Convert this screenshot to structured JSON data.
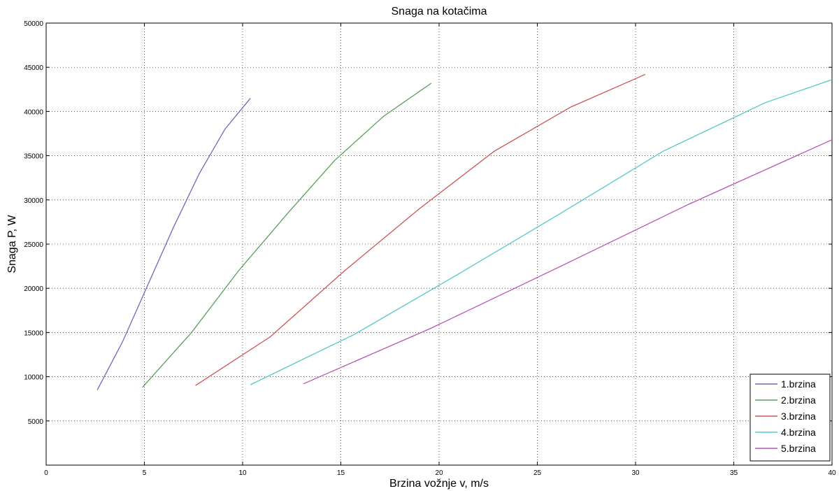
{
  "chart_data": {
    "type": "line",
    "title": "Snaga na kotačima",
    "xlabel": "Brzina vožnje v, m/s",
    "ylabel": "Snaga P, W",
    "xlim": [
      0,
      40
    ],
    "ylim": [
      0,
      50000
    ],
    "xticks": [
      0,
      5,
      10,
      15,
      20,
      25,
      30,
      35,
      40
    ],
    "yticks": [
      5000,
      10000,
      15000,
      20000,
      25000,
      30000,
      35000,
      40000,
      45000,
      50000
    ],
    "grid": true,
    "legend_position": "bottom-right",
    "series": [
      {
        "name": "1.brzina",
        "color": "#6a6ab8",
        "x": [
          2.6,
          3.9,
          5.2,
          6.5,
          7.8,
          9.1,
          10.4
        ],
        "y": [
          8500,
          14000,
          20500,
          27000,
          33000,
          38000,
          41500
        ]
      },
      {
        "name": "2.brzina",
        "color": "#5d9c5d",
        "x": [
          4.9,
          7.4,
          9.8,
          12.3,
          14.7,
          17.2,
          19.6
        ],
        "y": [
          8800,
          15000,
          22000,
          28500,
          34500,
          39500,
          43200
        ]
      },
      {
        "name": "3.brzina",
        "color": "#cc5555",
        "x": [
          7.6,
          11.4,
          15.2,
          19.0,
          22.8,
          26.7,
          30.5
        ],
        "y": [
          9000,
          14500,
          22000,
          29000,
          35500,
          40500,
          44200
        ]
      },
      {
        "name": "4.brzina",
        "color": "#55c8c8",
        "x": [
          10.4,
          15.7,
          20.9,
          26.2,
          31.4,
          36.6,
          40.0
        ],
        "y": [
          9100,
          14800,
          21500,
          28500,
          35500,
          41000,
          43600
        ]
      },
      {
        "name": "5.brzina",
        "color": "#b455b4",
        "x": [
          13.1,
          19.6,
          26.2,
          32.7,
          40.0
        ],
        "y": [
          9200,
          15500,
          22500,
          29500,
          36800
        ]
      }
    ]
  }
}
